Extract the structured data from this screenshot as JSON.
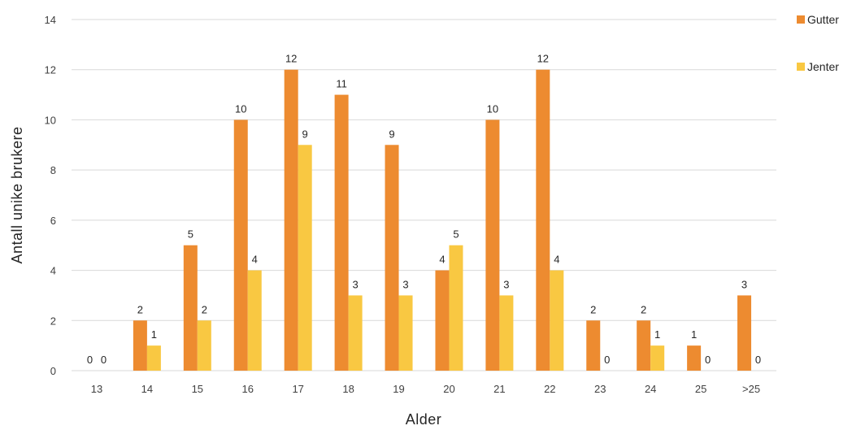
{
  "chart_data": {
    "type": "bar",
    "categories": [
      "13",
      "14",
      "15",
      "16",
      "17",
      "18",
      "19",
      "20",
      "21",
      "22",
      "23",
      "24",
      "25",
      ">25"
    ],
    "series": [
      {
        "name": "Gutter",
        "color": "#ED8B30",
        "values": [
          0,
          2,
          5,
          10,
          12,
          11,
          9,
          4,
          10,
          12,
          2,
          2,
          1,
          3
        ]
      },
      {
        "name": "Jenter",
        "color": "#F9C842",
        "values": [
          0,
          1,
          2,
          4,
          9,
          3,
          3,
          5,
          3,
          4,
          0,
          1,
          0,
          0
        ]
      }
    ],
    "xlabel": "Alder",
    "ylabel": "Antall unike brukere",
    "ylim": [
      0,
      14
    ],
    "yticks": [
      0,
      2,
      4,
      6,
      8,
      10,
      12,
      14
    ],
    "grid": true,
    "legend_position": "top-right",
    "gridline_color": "#D9D9D9"
  }
}
